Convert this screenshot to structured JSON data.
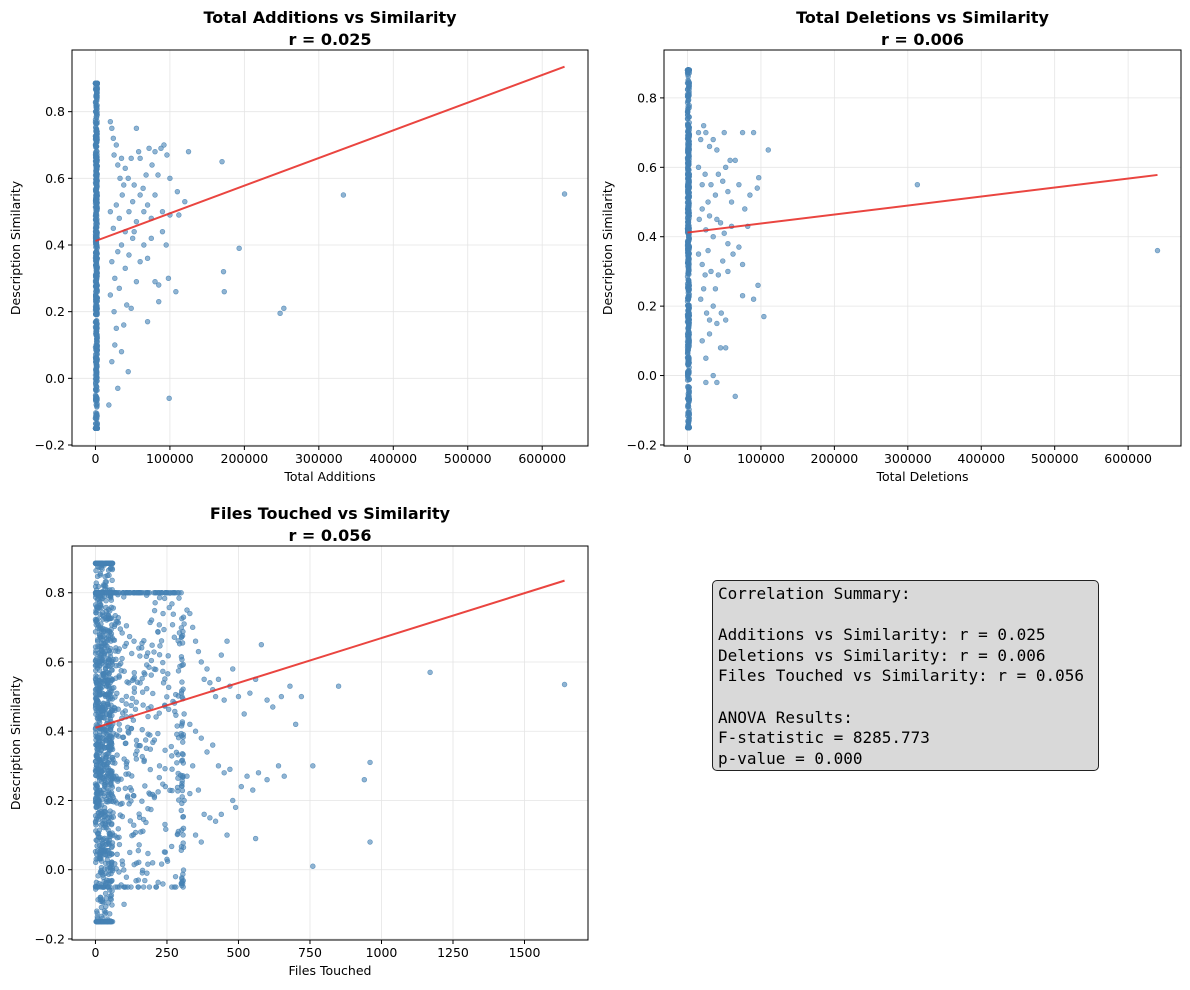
{
  "charts": [
    {
      "title": "Total Additions vs Similarity",
      "subtitle": "r = 0.025",
      "xlabel": "Total Additions",
      "ylabel": "Description Similarity",
      "xlim": [
        -31500,
        661500
      ],
      "ylim": [
        -0.203,
        0.985
      ],
      "xticks": [
        0,
        100000,
        200000,
        300000,
        400000,
        500000,
        600000
      ],
      "xtick_labels": [
        "0",
        "100000",
        "200000",
        "300000",
        "400000",
        "500000",
        "600000"
      ],
      "yticks": [
        -0.2,
        0.0,
        0.2,
        0.4,
        0.6,
        0.8
      ],
      "ytick_labels": [
        "−0.2",
        "0.0",
        "0.2",
        "0.4",
        "0.6",
        "0.8"
      ],
      "fit": {
        "x": [
          0,
          630000
        ],
        "y": [
          0.412,
          0.935
        ]
      },
      "cluster": {
        "x_max": 2500,
        "y_min": -0.15,
        "y_max": 0.885
      },
      "points": [
        [
          20000,
          0.77
        ],
        [
          22000,
          0.75
        ],
        [
          24000,
          0.72
        ],
        [
          25000,
          0.67
        ],
        [
          28000,
          0.7
        ],
        [
          30000,
          0.64
        ],
        [
          33000,
          0.6
        ],
        [
          35000,
          0.66
        ],
        [
          38000,
          0.58
        ],
        [
          40000,
          0.63
        ],
        [
          44000,
          0.6
        ],
        [
          48000,
          0.66
        ],
        [
          52000,
          0.58
        ],
        [
          55000,
          0.75
        ],
        [
          58000,
          0.68
        ],
        [
          60000,
          0.66
        ],
        [
          64000,
          0.57
        ],
        [
          68000,
          0.61
        ],
        [
          72000,
          0.69
        ],
        [
          76000,
          0.64
        ],
        [
          80000,
          0.68
        ],
        [
          84000,
          0.61
        ],
        [
          88000,
          0.69
        ],
        [
          92000,
          0.7
        ],
        [
          96000,
          0.67
        ],
        [
          100000,
          0.6
        ],
        [
          110000,
          0.56
        ],
        [
          120000,
          0.53
        ],
        [
          125000,
          0.68
        ],
        [
          170000,
          0.65
        ],
        [
          20000,
          0.5
        ],
        [
          24000,
          0.45
        ],
        [
          28000,
          0.52
        ],
        [
          32000,
          0.48
        ],
        [
          36000,
          0.55
        ],
        [
          40000,
          0.44
        ],
        [
          45000,
          0.5
        ],
        [
          50000,
          0.53
        ],
        [
          55000,
          0.47
        ],
        [
          60000,
          0.55
        ],
        [
          65000,
          0.5
        ],
        [
          70000,
          0.52
        ],
        [
          75000,
          0.48
        ],
        [
          80000,
          0.55
        ],
        [
          90000,
          0.5
        ],
        [
          100000,
          0.49
        ],
        [
          22000,
          0.35
        ],
        [
          26000,
          0.3
        ],
        [
          30000,
          0.38
        ],
        [
          35000,
          0.4
        ],
        [
          40000,
          0.33
        ],
        [
          45000,
          0.37
        ],
        [
          50000,
          0.42
        ],
        [
          55000,
          0.29
        ],
        [
          60000,
          0.35
        ],
        [
          65000,
          0.4
        ],
        [
          70000,
          0.36
        ],
        [
          75000,
          0.42
        ],
        [
          85000,
          0.28
        ],
        [
          95000,
          0.4
        ],
        [
          20000,
          0.25
        ],
        [
          25000,
          0.2
        ],
        [
          28000,
          0.15
        ],
        [
          32000,
          0.27
        ],
        [
          38000,
          0.16
        ],
        [
          42000,
          0.22
        ],
        [
          48000,
          0.21
        ],
        [
          22000,
          0.05
        ],
        [
          26000,
          0.1
        ],
        [
          30000,
          -0.03
        ],
        [
          35000,
          0.08
        ],
        [
          44000,
          0.02
        ],
        [
          18000,
          -0.08
        ],
        [
          80000,
          0.29
        ],
        [
          85000,
          0.23
        ],
        [
          98000,
          0.3
        ],
        [
          99000,
          -0.06
        ],
        [
          108000,
          0.26
        ],
        [
          172000,
          0.32
        ],
        [
          173000,
          0.26
        ],
        [
          193000,
          0.39
        ],
        [
          248000,
          0.195
        ],
        [
          253000,
          0.21
        ],
        [
          333000,
          0.55
        ],
        [
          630000,
          0.553
        ],
        [
          70000,
          0.17
        ],
        [
          52000,
          0.44
        ],
        [
          90000,
          0.44
        ],
        [
          112000,
          0.49
        ]
      ]
    },
    {
      "title": "Total Deletions vs Similarity",
      "subtitle": "r = 0.006",
      "xlabel": "Total Deletions",
      "ylabel": "Description Similarity",
      "xlim": [
        -32000,
        672000
      ],
      "ylim": [
        -0.203,
        0.938
      ],
      "xticks": [
        0,
        100000,
        200000,
        300000,
        400000,
        500000,
        600000
      ],
      "xtick_labels": [
        "0",
        "100000",
        "200000",
        "300000",
        "400000",
        "500000",
        "600000"
      ],
      "yticks": [
        -0.2,
        0.0,
        0.2,
        0.4,
        0.6,
        0.8
      ],
      "ytick_labels": [
        "−0.2",
        "0.0",
        "0.2",
        "0.4",
        "0.6",
        "0.8"
      ],
      "fit": {
        "x": [
          0,
          640000
        ],
        "y": [
          0.412,
          0.578
        ]
      },
      "cluster": {
        "x_max": 2500,
        "y_min": -0.15,
        "y_max": 0.88
      },
      "points": [
        [
          15000,
          0.7
        ],
        [
          18000,
          0.68
        ],
        [
          22000,
          0.72
        ],
        [
          25000,
          0.7
        ],
        [
          30000,
          0.66
        ],
        [
          35000,
          0.68
        ],
        [
          40000,
          0.65
        ],
        [
          50000,
          0.7
        ],
        [
          58000,
          0.62
        ],
        [
          65000,
          0.62
        ],
        [
          75000,
          0.7
        ],
        [
          90000,
          0.7
        ],
        [
          110000,
          0.65
        ],
        [
          15000,
          0.6
        ],
        [
          20000,
          0.55
        ],
        [
          24000,
          0.58
        ],
        [
          28000,
          0.5
        ],
        [
          32000,
          0.55
        ],
        [
          38000,
          0.52
        ],
        [
          42000,
          0.58
        ],
        [
          48000,
          0.56
        ],
        [
          52000,
          0.6
        ],
        [
          55000,
          0.53
        ],
        [
          60000,
          0.5
        ],
        [
          70000,
          0.55
        ],
        [
          78000,
          0.48
        ],
        [
          85000,
          0.52
        ],
        [
          95000,
          0.54
        ],
        [
          16000,
          0.45
        ],
        [
          20000,
          0.48
        ],
        [
          25000,
          0.42
        ],
        [
          30000,
          0.46
        ],
        [
          35000,
          0.4
        ],
        [
          40000,
          0.45
        ],
        [
          45000,
          0.44
        ],
        [
          50000,
          0.41
        ],
        [
          55000,
          0.38
        ],
        [
          62000,
          0.35
        ],
        [
          70000,
          0.37
        ],
        [
          75000,
          0.32
        ],
        [
          15000,
          0.35
        ],
        [
          20000,
          0.32
        ],
        [
          24000,
          0.29
        ],
        [
          28000,
          0.36
        ],
        [
          32000,
          0.3
        ],
        [
          38000,
          0.25
        ],
        [
          42000,
          0.29
        ],
        [
          48000,
          0.33
        ],
        [
          55000,
          0.3
        ],
        [
          18000,
          0.22
        ],
        [
          22000,
          0.25
        ],
        [
          26000,
          0.18
        ],
        [
          30000,
          0.16
        ],
        [
          35000,
          0.2
        ],
        [
          40000,
          0.15
        ],
        [
          46000,
          0.18
        ],
        [
          52000,
          0.16
        ],
        [
          20000,
          0.1
        ],
        [
          25000,
          0.05
        ],
        [
          30000,
          0.12
        ],
        [
          35000,
          0.0
        ],
        [
          40000,
          -0.02
        ],
        [
          45000,
          0.08
        ],
        [
          52000,
          0.08
        ],
        [
          25000,
          -0.02
        ],
        [
          65000,
          -0.06
        ],
        [
          75000,
          0.23
        ],
        [
          90000,
          0.22
        ],
        [
          96000,
          0.26
        ],
        [
          104000,
          0.17
        ],
        [
          97000,
          0.57
        ],
        [
          313000,
          0.55
        ],
        [
          640000,
          0.36
        ],
        [
          60000,
          0.43
        ],
        [
          82000,
          0.43
        ]
      ]
    },
    {
      "title": "Files Touched vs Similarity",
      "subtitle": "r = 0.056",
      "xlabel": "Files Touched",
      "ylabel": "Description Similarity",
      "xlim": [
        -82,
        1722
      ],
      "ylim": [
        -0.203,
        0.935
      ],
      "xticks": [
        0,
        250,
        500,
        750,
        1000,
        1250,
        1500
      ],
      "xtick_labels": [
        "0",
        "250",
        "500",
        "750",
        "1000",
        "1250",
        "1500"
      ],
      "yticks": [
        -0.2,
        0.0,
        0.2,
        0.4,
        0.6,
        0.8
      ],
      "ytick_labels": [
        "−0.2",
        "0.0",
        "0.2",
        "0.4",
        "0.6",
        "0.8"
      ],
      "fit": {
        "x": [
          0,
          1640
        ],
        "y": [
          0.41,
          0.835
        ]
      },
      "cluster": {
        "x_max": 60,
        "y_min": -0.15,
        "y_max": 0.885
      },
      "dense_region": {
        "x_max": 300,
        "y_min": -0.05,
        "y_max": 0.8
      },
      "points": [
        [
          310,
          0.71
        ],
        [
          320,
          0.75
        ],
        [
          330,
          0.74
        ],
        [
          340,
          0.7
        ],
        [
          350,
          0.66
        ],
        [
          360,
          0.63
        ],
        [
          370,
          0.6
        ],
        [
          380,
          0.55
        ],
        [
          390,
          0.58
        ],
        [
          400,
          0.54
        ],
        [
          410,
          0.52
        ],
        [
          420,
          0.5
        ],
        [
          430,
          0.55
        ],
        [
          440,
          0.62
        ],
        [
          450,
          0.49
        ],
        [
          460,
          0.66
        ],
        [
          470,
          0.53
        ],
        [
          480,
          0.58
        ],
        [
          500,
          0.5
        ],
        [
          520,
          0.45
        ],
        [
          540,
          0.51
        ],
        [
          560,
          0.55
        ],
        [
          580,
          0.65
        ],
        [
          600,
          0.49
        ],
        [
          620,
          0.47
        ],
        [
          650,
          0.5
        ],
        [
          680,
          0.53
        ],
        [
          700,
          0.42
        ],
        [
          720,
          0.5
        ],
        [
          760,
          0.3
        ],
        [
          850,
          0.53
        ],
        [
          940,
          0.26
        ],
        [
          960,
          0.31
        ],
        [
          1170,
          0.57
        ],
        [
          1640,
          0.535
        ],
        [
          310,
          0.45
        ],
        [
          330,
          0.42
        ],
        [
          350,
          0.4
        ],
        [
          370,
          0.38
        ],
        [
          390,
          0.34
        ],
        [
          410,
          0.36
        ],
        [
          430,
          0.3
        ],
        [
          450,
          0.28
        ],
        [
          470,
          0.29
        ],
        [
          490,
          0.18
        ],
        [
          510,
          0.24
        ],
        [
          530,
          0.27
        ],
        [
          550,
          0.23
        ],
        [
          570,
          0.28
        ],
        [
          600,
          0.26
        ],
        [
          640,
          0.3
        ],
        [
          660,
          0.27
        ],
        [
          310,
          0.2
        ],
        [
          330,
          0.22
        ],
        [
          350,
          0.1
        ],
        [
          370,
          0.08
        ],
        [
          380,
          0.16
        ],
        [
          400,
          0.15
        ],
        [
          420,
          0.14
        ],
        [
          440,
          0.16
        ],
        [
          460,
          0.1
        ],
        [
          480,
          0.2
        ],
        [
          560,
          0.09
        ],
        [
          760,
          0.01
        ],
        [
          960,
          0.08
        ],
        [
          300,
          -0.04
        ],
        [
          280,
          -0.02
        ],
        [
          250,
          0.03
        ],
        [
          200,
          0.02
        ],
        [
          180,
          -0.01
        ],
        [
          150,
          -0.03
        ],
        [
          100,
          -0.1
        ],
        [
          120,
          0.05
        ],
        [
          320,
          0.27
        ],
        [
          340,
          0.3
        ],
        [
          360,
          0.23
        ]
      ]
    }
  ],
  "summary": {
    "heading": "Correlation Summary:",
    "correlations": [
      "Additions vs Similarity: r = 0.025",
      "Deletions vs Similarity: r = 0.006",
      "Files Touched vs Similarity: r = 0.056"
    ],
    "anova_heading": "ANOVA Results:",
    "f_statistic": "F-statistic = 8285.773",
    "p_value": "p-value = 0.000"
  },
  "colors": {
    "points": "#4682b4",
    "fit_line": "#e8312b",
    "grid": "#e5e5e5",
    "box_bg": "#d9d9d9"
  }
}
